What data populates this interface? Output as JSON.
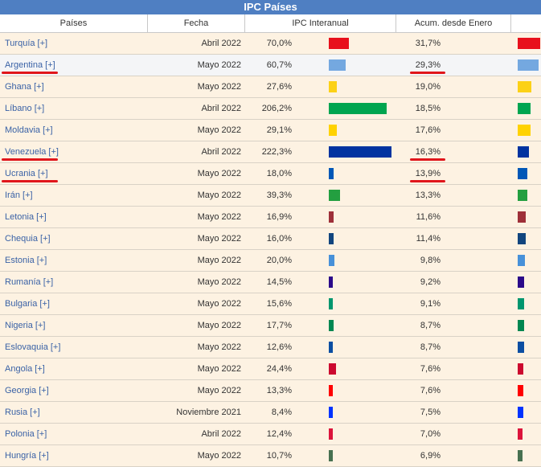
{
  "title": "IPC Países",
  "headers": {
    "pais": "Países",
    "fecha": "Fecha",
    "ipc": "IPC Interanual",
    "acum": "Acum. desde Enero"
  },
  "rows": [
    {
      "pais": "Turquía [+]",
      "fecha": "Abril 2022",
      "ipc": "70,0%",
      "acum": "31,7%",
      "ipc_value": 70.0,
      "acum_value": 31.7,
      "color": "#e8101c"
    },
    {
      "pais": "Argentina [+]",
      "fecha": "Mayo 2022",
      "ipc": "60,7%",
      "acum": "29,3%",
      "ipc_value": 60.7,
      "acum_value": 29.3,
      "color": "#74a8e0",
      "highlight": true,
      "underline": true
    },
    {
      "pais": "Ghana [+]",
      "fecha": "Mayo 2022",
      "ipc": "27,6%",
      "acum": "19,0%",
      "ipc_value": 27.6,
      "acum_value": 19.0,
      "color": "#fcd116"
    },
    {
      "pais": "Líbano [+]",
      "fecha": "Abril 2022",
      "ipc": "206,2%",
      "acum": "18,5%",
      "ipc_value": 206.2,
      "acum_value": 18.5,
      "color": "#00a550"
    },
    {
      "pais": "Moldavia [+]",
      "fecha": "Mayo 2022",
      "ipc": "29,1%",
      "acum": "17,6%",
      "ipc_value": 29.1,
      "acum_value": 17.6,
      "color": "#ffd200"
    },
    {
      "pais": "Venezuela [+]",
      "fecha": "Abril 2022",
      "ipc": "222,3%",
      "acum": "16,3%",
      "ipc_value": 222.3,
      "acum_value": 16.3,
      "color": "#0033a0",
      "underline": true
    },
    {
      "pais": "Ucrania [+]",
      "fecha": "Mayo 2022",
      "ipc": "18,0%",
      "acum": "13,9%",
      "ipc_value": 18.0,
      "acum_value": 13.9,
      "color": "#0057b7",
      "underline": true
    },
    {
      "pais": "Irán [+]",
      "fecha": "Mayo 2022",
      "ipc": "39,3%",
      "acum": "13,3%",
      "ipc_value": 39.3,
      "acum_value": 13.3,
      "color": "#239f40"
    },
    {
      "pais": "Letonia [+]",
      "fecha": "Mayo 2022",
      "ipc": "16,9%",
      "acum": "11,6%",
      "ipc_value": 16.9,
      "acum_value": 11.6,
      "color": "#9e3039"
    },
    {
      "pais": "Chequia [+]",
      "fecha": "Mayo 2022",
      "ipc": "16,0%",
      "acum": "11,4%",
      "ipc_value": 16.0,
      "acum_value": 11.4,
      "color": "#11457e"
    },
    {
      "pais": "Estonia [+]",
      "fecha": "Mayo 2022",
      "ipc": "20,0%",
      "acum": "9,8%",
      "ipc_value": 20.0,
      "acum_value": 9.8,
      "color": "#4891d9"
    },
    {
      "pais": "Rumanía [+]",
      "fecha": "Mayo 2022",
      "ipc": "14,5%",
      "acum": "9,2%",
      "ipc_value": 14.5,
      "acum_value": 9.2,
      "color": "#2b0a8a"
    },
    {
      "pais": "Bulgaria [+]",
      "fecha": "Mayo 2022",
      "ipc": "15,6%",
      "acum": "9,1%",
      "ipc_value": 15.6,
      "acum_value": 9.1,
      "color": "#00966e"
    },
    {
      "pais": "Nigeria [+]",
      "fecha": "Mayo 2022",
      "ipc": "17,7%",
      "acum": "8,7%",
      "ipc_value": 17.7,
      "acum_value": 8.7,
      "color": "#008751"
    },
    {
      "pais": "Eslovaquia [+]",
      "fecha": "Mayo 2022",
      "ipc": "12,6%",
      "acum": "8,7%",
      "ipc_value": 12.6,
      "acum_value": 8.7,
      "color": "#0b4ea2"
    },
    {
      "pais": "Angola [+]",
      "fecha": "Mayo 2022",
      "ipc": "24,4%",
      "acum": "7,6%",
      "ipc_value": 24.4,
      "acum_value": 7.6,
      "color": "#cc092f"
    },
    {
      "pais": "Georgia [+]",
      "fecha": "Mayo 2022",
      "ipc": "13,3%",
      "acum": "7,6%",
      "ipc_value": 13.3,
      "acum_value": 7.6,
      "color": "#ff0000"
    },
    {
      "pais": "Rusia [+]",
      "fecha": "Noviembre 2021",
      "ipc": "8,4%",
      "acum": "7,5%",
      "ipc_value": 8.4,
      "acum_value": 7.5,
      "color": "#0033ff"
    },
    {
      "pais": "Polonia [+]",
      "fecha": "Abril 2022",
      "ipc": "12,4%",
      "acum": "7,0%",
      "ipc_value": 12.4,
      "acum_value": 7.0,
      "color": "#dc143c"
    },
    {
      "pais": "Hungría [+]",
      "fecha": "Mayo 2022",
      "ipc": "10,7%",
      "acum": "6,9%",
      "ipc_value": 10.7,
      "acum_value": 6.9,
      "color": "#477050"
    }
  ]
}
